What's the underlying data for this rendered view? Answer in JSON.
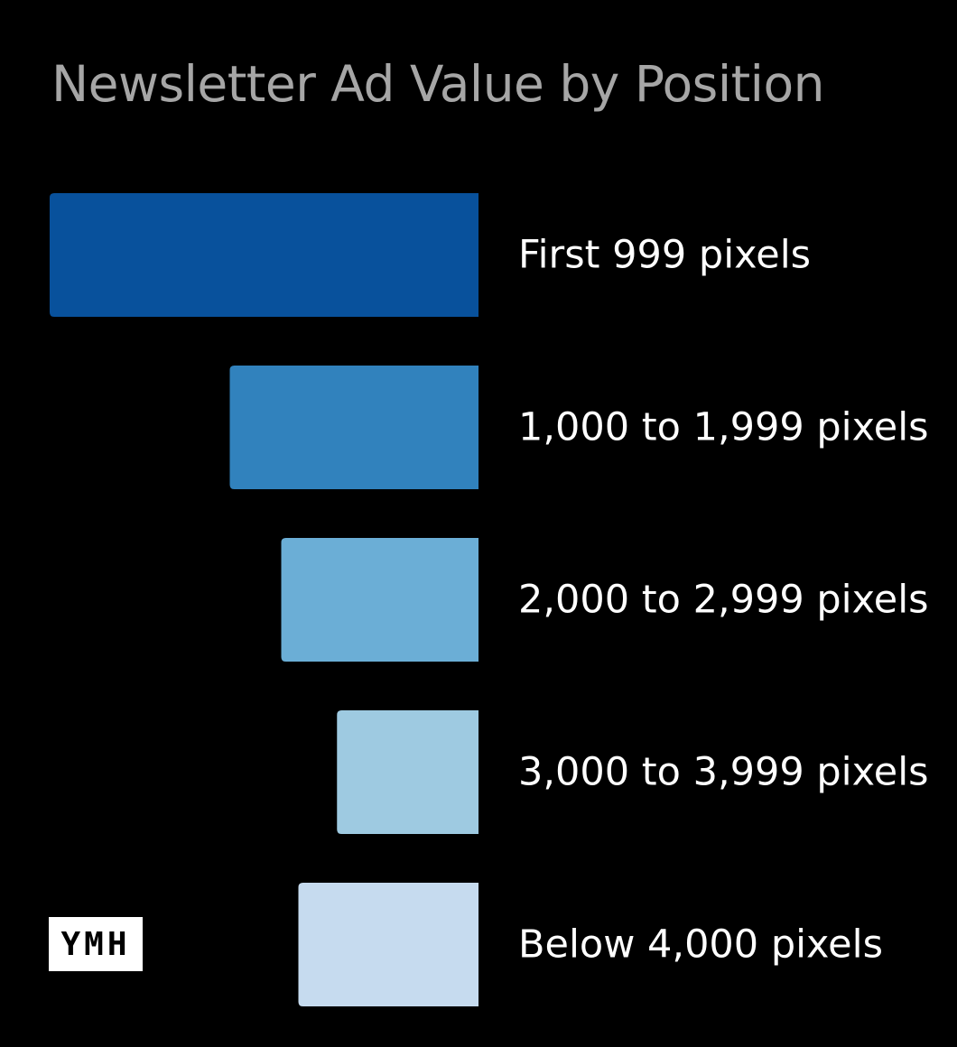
{
  "chart_data": {
    "type": "bar",
    "orientation": "horizontal",
    "title": "Newsletter Ad Value by Position",
    "categories": [
      "First 999 pixels",
      "1,000 to 1,999 pixels",
      "2,000 to 2,999 pixels",
      "3,000 to 3,999 pixels",
      "Below 4,000 pixels"
    ],
    "values": [
      100,
      58,
      46,
      33,
      42
    ],
    "colors": [
      "#08519c",
      "#3182bd",
      "#6baed6",
      "#9ecae1",
      "#c6dbef"
    ],
    "value_axis_visible": false,
    "grid": false,
    "legend": "none"
  },
  "logo": {
    "text": "YMH"
  },
  "colors": {
    "background": "#000000",
    "title": "#a6a6a6",
    "labels": "#ffffff"
  }
}
